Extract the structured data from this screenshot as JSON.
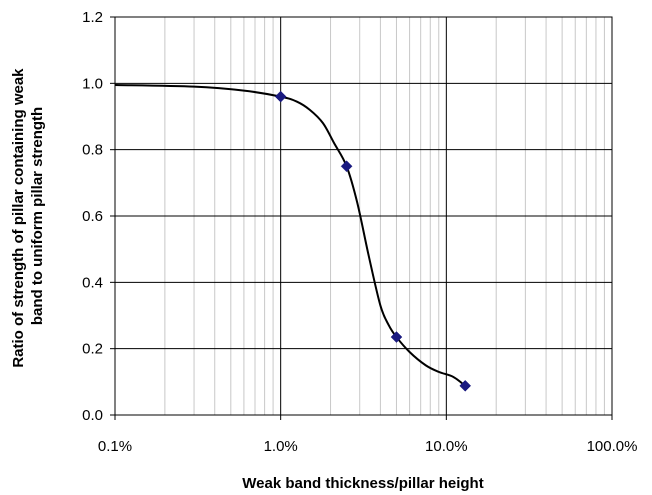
{
  "chart_data": {
    "type": "scatter",
    "title": "",
    "xlabel": "Weak band thickness/pillar height",
    "ylabel_lines": [
      "Ratio of strength of pillar containing weak",
      "band to uniform pillar strength"
    ],
    "x_scale": "log",
    "xlim": [
      0.001,
      1.0
    ],
    "ylim": [
      0.0,
      1.2
    ],
    "x_ticks": [
      {
        "value": 0.001,
        "label": "0.1%"
      },
      {
        "value": 0.01,
        "label": "1.0%"
      },
      {
        "value": 0.1,
        "label": "10.0%"
      },
      {
        "value": 1.0,
        "label": "100.0%"
      }
    ],
    "y_ticks": [
      {
        "value": 0.0,
        "label": "0.0"
      },
      {
        "value": 0.2,
        "label": "0.2"
      },
      {
        "value": 0.4,
        "label": "0.4"
      },
      {
        "value": 0.6,
        "label": "0.6"
      },
      {
        "value": 0.8,
        "label": "0.8"
      },
      {
        "value": 1.0,
        "label": "1.0"
      },
      {
        "value": 1.2,
        "label": "1.2"
      }
    ],
    "grid": true,
    "minor_grid_x": true,
    "legend": "none",
    "series": [
      {
        "kind": "markers",
        "marker": "diamond",
        "color": "#1a1a80",
        "x": [
          0.01,
          0.025,
          0.05,
          0.13
        ],
        "y": [
          0.96,
          0.75,
          0.235,
          0.088
        ]
      },
      {
        "kind": "line",
        "color": "#000000",
        "x": [
          0.001,
          0.003,
          0.006,
          0.01,
          0.0125,
          0.015,
          0.018,
          0.021,
          0.025,
          0.029,
          0.034,
          0.04,
          0.045,
          0.05,
          0.06,
          0.075,
          0.09,
          0.11,
          0.13
        ],
        "y": [
          0.995,
          0.99,
          0.978,
          0.96,
          0.945,
          0.92,
          0.88,
          0.82,
          0.75,
          0.64,
          0.48,
          0.33,
          0.27,
          0.235,
          0.19,
          0.15,
          0.13,
          0.115,
          0.088
        ]
      }
    ]
  }
}
